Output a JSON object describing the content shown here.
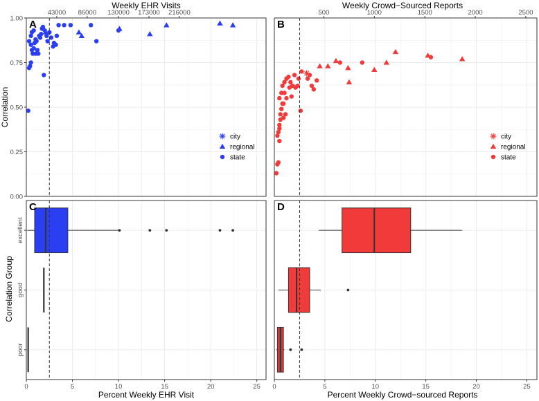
{
  "colors": {
    "ehr": "#2b3ff2",
    "crowd": "#f13a3a",
    "crowd_poor": "#d63a3a",
    "grid": "#ebebeb",
    "vline": "#333333"
  },
  "chart_data": [
    {
      "panel": "A",
      "type": "scatter",
      "top_axis_title": "Weekly EHR Visits",
      "top_ticks": [
        "43000",
        "86000",
        "130000",
        "173000",
        "216000"
      ],
      "top_tick_positions": [
        3.3,
        6.6,
        10,
        13.3,
        16.6
      ],
      "ylabel": "Correlation",
      "xlim": [
        0,
        26
      ],
      "ylim": [
        0,
        1
      ],
      "y_ticks": [
        "0.00",
        "0.25",
        "0.50",
        "0.75",
        "1.00"
      ],
      "x_ticks": [
        0,
        5,
        10,
        15,
        20,
        25
      ],
      "vline": 2.5,
      "legend": [
        "city",
        "regional",
        "state"
      ],
      "series": [
        {
          "name": "state",
          "shape": "circle",
          "points": [
            [
              0.2,
              0.48
            ],
            [
              0.3,
              0.72
            ],
            [
              0.4,
              0.73
            ],
            [
              0.5,
              0.75
            ],
            [
              0.3,
              0.87
            ],
            [
              0.5,
              0.85
            ],
            [
              0.6,
              0.82
            ],
            [
              0.7,
              0.8
            ],
            [
              0.8,
              0.83
            ],
            [
              0.5,
              0.9
            ],
            [
              0.6,
              0.92
            ],
            [
              0.9,
              0.86
            ],
            [
              1.0,
              0.88
            ],
            [
              1.1,
              0.87
            ],
            [
              1.2,
              0.82
            ],
            [
              1.3,
              0.8
            ],
            [
              0.8,
              0.93
            ],
            [
              1.4,
              0.9
            ],
            [
              1.5,
              0.89
            ],
            [
              1.6,
              0.91
            ],
            [
              1.0,
              0.8
            ],
            [
              1.7,
              0.94
            ],
            [
              1.8,
              0.95
            ],
            [
              1.9,
              0.68
            ],
            [
              2.0,
              0.93
            ],
            [
              2.2,
              0.9
            ],
            [
              2.3,
              0.87
            ],
            [
              2.5,
              0.92
            ],
            [
              2.7,
              0.89
            ],
            [
              2.9,
              0.84
            ],
            [
              3.0,
              0.86
            ],
            [
              3.2,
              0.85
            ],
            [
              3.3,
              0.9
            ],
            [
              3.5,
              0.96
            ],
            [
              4.1,
              0.96
            ],
            [
              4.8,
              0.96
            ],
            [
              7.0,
              0.96
            ],
            [
              7.6,
              0.87
            ],
            [
              10.0,
              0.93
            ]
          ]
        },
        {
          "name": "regional",
          "shape": "triangle",
          "points": [
            [
              2.1,
              0.92
            ],
            [
              5.7,
              0.92
            ],
            [
              6.0,
              0.9
            ],
            [
              10.1,
              0.94
            ],
            [
              13.4,
              0.91
            ],
            [
              15.2,
              0.96
            ],
            [
              21.0,
              0.97
            ],
            [
              22.4,
              0.96
            ]
          ]
        }
      ]
    },
    {
      "panel": "B",
      "type": "scatter",
      "top_axis_title": "Weekly Crowd−Sourced Reports",
      "top_ticks": [
        "500",
        "1000",
        "1500",
        "2000",
        "2500"
      ],
      "top_tick_positions": [
        4.9,
        9.9,
        14.9,
        19.9,
        24.9
      ],
      "xlim": [
        0,
        26
      ],
      "ylim": [
        0,
        1
      ],
      "x_ticks": [
        0,
        5,
        10,
        15,
        20,
        25
      ],
      "vline": 2.5,
      "legend": [
        "city",
        "regional",
        "state"
      ],
      "series": [
        {
          "name": "state",
          "shape": "circle",
          "points": [
            [
              0.2,
              0.13
            ],
            [
              0.3,
              0.18
            ],
            [
              0.4,
              0.19
            ],
            [
              0.3,
              0.34
            ],
            [
              0.4,
              0.36
            ],
            [
              0.5,
              0.38
            ],
            [
              0.5,
              0.4
            ],
            [
              0.6,
              0.43
            ],
            [
              0.5,
              0.31
            ],
            [
              0.6,
              0.46
            ],
            [
              0.7,
              0.49
            ],
            [
              0.8,
              0.52
            ],
            [
              0.5,
              0.55
            ],
            [
              0.7,
              0.58
            ],
            [
              0.9,
              0.52
            ],
            [
              1.0,
              0.58
            ],
            [
              1.1,
              0.46
            ],
            [
              0.8,
              0.62
            ],
            [
              1.0,
              0.64
            ],
            [
              1.2,
              0.66
            ],
            [
              1.4,
              0.67
            ],
            [
              1.5,
              0.61
            ],
            [
              1.6,
              0.64
            ],
            [
              1.7,
              0.56
            ],
            [
              1.8,
              0.62
            ],
            [
              2.0,
              0.68
            ],
            [
              2.1,
              0.61
            ],
            [
              2.3,
              0.62
            ],
            [
              2.4,
              0.66
            ],
            [
              2.6,
              0.48
            ],
            [
              2.7,
              0.7
            ],
            [
              3.3,
              0.66
            ],
            [
              3.5,
              0.68
            ],
            [
              3.7,
              0.62
            ],
            [
              3.9,
              0.6
            ],
            [
              4.2,
              0.65
            ],
            [
              6.5,
              0.75
            ],
            [
              8.7,
              0.75
            ],
            [
              15.5,
              0.78
            ],
            [
              1.2,
              0.55
            ],
            [
              0.9,
              0.44
            ]
          ]
        },
        {
          "name": "regional",
          "shape": "triangle",
          "points": [
            [
              4.5,
              0.73
            ],
            [
              5.3,
              0.73
            ],
            [
              6.1,
              0.76
            ],
            [
              7.3,
              0.72
            ],
            [
              7.4,
              0.64
            ],
            [
              9.9,
              0.71
            ],
            [
              11.1,
              0.75
            ],
            [
              12.0,
              0.81
            ],
            [
              15.2,
              0.79
            ],
            [
              18.6,
              0.77
            ]
          ]
        },
        {
          "name": "city",
          "shape": "asterisk",
          "points": [
            [
              3.2,
              0.69
            ]
          ]
        }
      ]
    },
    {
      "panel": "C",
      "type": "box",
      "xlabel": "Percent Weekly EHR Visit",
      "ylabel": "Correlation Group",
      "categories": [
        "excellent",
        "good",
        "poor"
      ],
      "xlim": [
        0,
        26
      ],
      "x_ticks": [
        "0",
        "5",
        "10",
        "15",
        "20",
        "25"
      ],
      "x_tick_values": [
        0,
        5,
        10,
        15,
        20,
        25
      ],
      "vline": 2.5,
      "boxes": [
        {
          "group": "excellent",
          "whisker_low": 0.1,
          "q1": 0.9,
          "median": 2.1,
          "q3": 4.5,
          "whisker_high": 10.0,
          "outliers": [
            10.1,
            13.4,
            15.2,
            21.0,
            22.4
          ]
        },
        {
          "group": "good",
          "whisker_low": 1.9,
          "q1": 1.9,
          "median": 1.9,
          "q3": 1.9,
          "whisker_high": 1.9,
          "outliers": []
        },
        {
          "group": "poor",
          "whisker_low": 0.2,
          "q1": 0.2,
          "median": 0.2,
          "q3": 0.2,
          "whisker_high": 0.2,
          "outliers": []
        }
      ]
    },
    {
      "panel": "D",
      "type": "box",
      "xlabel": "Percent Weekly Crowd−sourced Reports",
      "categories": [
        "excellent",
        "good",
        "poor"
      ],
      "xlim": [
        0,
        26
      ],
      "x_ticks": [
        "0",
        "5",
        "10",
        "15",
        "20",
        "25"
      ],
      "x_tick_values": [
        0,
        5,
        10,
        15,
        20,
        25
      ],
      "vline": 2.5,
      "boxes": [
        {
          "group": "excellent",
          "whisker_low": 4.4,
          "q1": 6.7,
          "median": 9.9,
          "q3": 13.5,
          "whisker_high": 18.6,
          "outliers": []
        },
        {
          "group": "good",
          "whisker_low": 0.4,
          "q1": 1.4,
          "median": 2.2,
          "q3": 3.5,
          "whisker_high": 4.6,
          "outliers": [
            7.3
          ]
        },
        {
          "group": "poor",
          "whisker_low": 0.2,
          "q1": 0.3,
          "median": 0.6,
          "q3": 0.9,
          "whisker_high": 1.0,
          "outliers": [
            1.6,
            2.7
          ]
        }
      ]
    }
  ]
}
